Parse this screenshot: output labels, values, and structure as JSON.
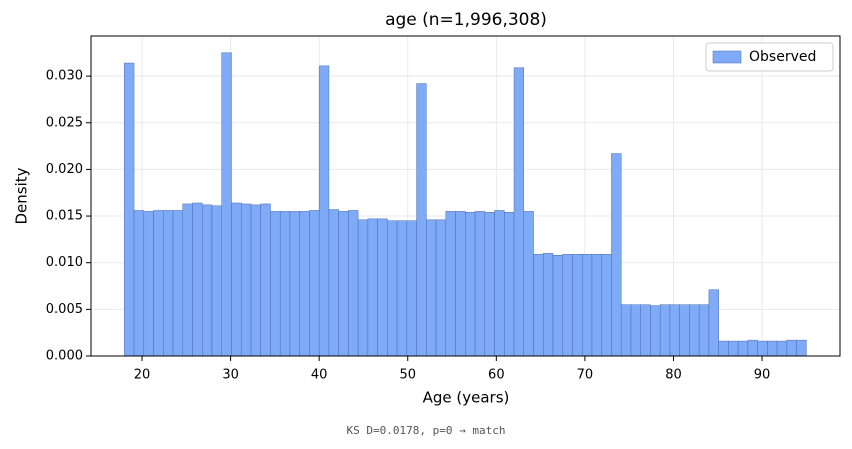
{
  "chart_data": {
    "type": "histogram",
    "title": "age  (n=1,996,308)",
    "x_label": "Age (years)",
    "y_label": "Density",
    "bins": [
      18,
      19.1,
      20.2,
      21.3,
      22.4,
      23.5,
      24.6,
      25.7,
      26.8,
      27.9,
      29,
      30.1,
      31.2,
      32.3,
      33.4,
      34.5,
      35.6,
      36.7,
      37.8,
      38.9,
      40,
      41.1,
      42.2,
      43.3,
      44.4,
      45.5,
      46.6,
      47.7,
      48.8,
      49.9,
      51,
      52.1,
      53.2,
      54.3,
      55.4,
      56.5,
      57.6,
      58.7,
      59.8,
      60.9,
      62,
      63.1,
      64.2,
      65.3,
      66.4,
      67.5,
      68.6,
      69.7,
      70.8,
      71.9,
      73,
      74.1,
      75.2,
      76.3,
      77.4,
      78.5,
      79.6,
      80.7,
      81.8,
      82.9,
      84,
      85.1,
      86.2,
      87.3,
      88.4,
      89.5,
      90.6,
      91.7,
      92.8,
      93.9,
      95
    ],
    "series": [
      {
        "name": "Observed",
        "color": "#7eaaf7",
        "edge_color": "#4a6cb0",
        "values": [
          0.0314,
          0.0156,
          0.0155,
          0.0156,
          0.0156,
          0.0156,
          0.0163,
          0.0164,
          0.0162,
          0.0161,
          0.0325,
          0.0164,
          0.0163,
          0.0162,
          0.0163,
          0.0155,
          0.0155,
          0.0155,
          0.0155,
          0.0156,
          0.0311,
          0.0157,
          0.0155,
          0.0156,
          0.0146,
          0.0147,
          0.0147,
          0.0145,
          0.0145,
          0.0145,
          0.0292,
          0.0146,
          0.0146,
          0.0155,
          0.0155,
          0.0154,
          0.0155,
          0.0154,
          0.0156,
          0.0154,
          0.0309,
          0.0155,
          0.0109,
          0.011,
          0.0108,
          0.0109,
          0.0109,
          0.0109,
          0.0109,
          0.0109,
          0.0217,
          0.0055,
          0.0055,
          0.0055,
          0.0054,
          0.0055,
          0.0055,
          0.0055,
          0.0055,
          0.0055,
          0.0071,
          0.0016,
          0.0016,
          0.0016,
          0.0017,
          0.0016,
          0.0016,
          0.0016,
          0.0017,
          0.0017
        ]
      }
    ],
    "xlim": [
      14.24,
      98.8
    ],
    "xticks": [
      20,
      30,
      40,
      50,
      60,
      70,
      80,
      90
    ],
    "ylim": [
      0,
      0.0343
    ],
    "yticks": [
      {
        "value": 0,
        "label": "0.000"
      },
      {
        "value": 0.005,
        "label": "0.005"
      },
      {
        "value": 0.01,
        "label": "0.010"
      },
      {
        "value": 0.015,
        "label": "0.015"
      },
      {
        "value": 0.02,
        "label": "0.020"
      },
      {
        "value": 0.025,
        "label": "0.025"
      },
      {
        "value": 0.03,
        "label": "0.030"
      }
    ],
    "grid": true,
    "legend": "upper right",
    "footnote": "KS D=0.0178, p=0 → match"
  }
}
